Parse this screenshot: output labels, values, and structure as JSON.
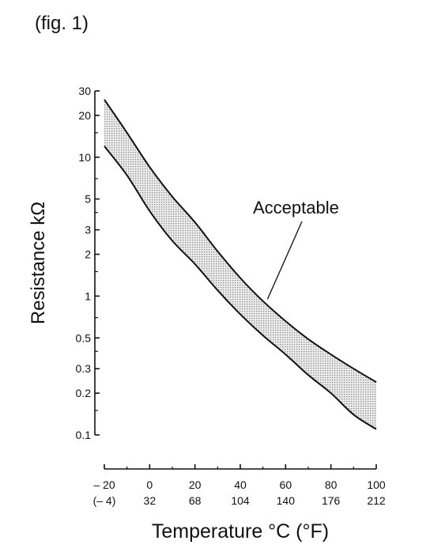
{
  "figure_label": "(fig. 1)",
  "chart_data": {
    "type": "area",
    "ylabel": "Resistance kΩ",
    "xlabel": "Temperature °C (°F)",
    "yscale": "log",
    "ylim": [
      0.1,
      30
    ],
    "xlim": [
      -20,
      100
    ],
    "y_ticks": [
      {
        "value": 30,
        "label": "30"
      },
      {
        "value": 20,
        "label": "20"
      },
      {
        "value": 10,
        "label": "10"
      },
      {
        "value": 5,
        "label": "5"
      },
      {
        "value": 3,
        "label": "3"
      },
      {
        "value": 2,
        "label": "2"
      },
      {
        "value": 1,
        "label": "1"
      },
      {
        "value": 0.5,
        "label": "0.5"
      },
      {
        "value": 0.3,
        "label": "0.3"
      },
      {
        "value": 0.2,
        "label": "0.2"
      },
      {
        "value": 0.1,
        "label": "0.1"
      }
    ],
    "x_ticks": [
      {
        "value": -20,
        "label_c": "– 20",
        "label_f": "(– 4)"
      },
      {
        "value": 0,
        "label_c": "0",
        "label_f": "32"
      },
      {
        "value": 20,
        "label_c": "20",
        "label_f": "68"
      },
      {
        "value": 40,
        "label_c": "40",
        "label_f": "104"
      },
      {
        "value": 60,
        "label_c": "60",
        "label_f": "140"
      },
      {
        "value": 80,
        "label_c": "80",
        "label_f": "176"
      },
      {
        "value": 100,
        "label_c": "100",
        "label_f": "212"
      }
    ],
    "upper_curve": {
      "x": [
        -20,
        -10,
        0,
        10,
        20,
        30,
        40,
        50,
        60,
        70,
        80,
        90,
        100
      ],
      "y": [
        26,
        15,
        8.5,
        5.2,
        3.4,
        2.1,
        1.35,
        0.92,
        0.66,
        0.49,
        0.38,
        0.3,
        0.24
      ]
    },
    "lower_curve": {
      "x": [
        -20,
        -10,
        0,
        10,
        20,
        30,
        40,
        50,
        60,
        70,
        80,
        90,
        100
      ],
      "y": [
        12,
        7.4,
        4.1,
        2.5,
        1.7,
        1.1,
        0.74,
        0.52,
        0.38,
        0.27,
        0.2,
        0.14,
        0.11
      ]
    },
    "annotation": {
      "text": "Acceptable",
      "points_to": {
        "x": 52,
        "y": 0.95
      }
    },
    "band_color": "#b8b8b8",
    "line_color": "#111111"
  }
}
